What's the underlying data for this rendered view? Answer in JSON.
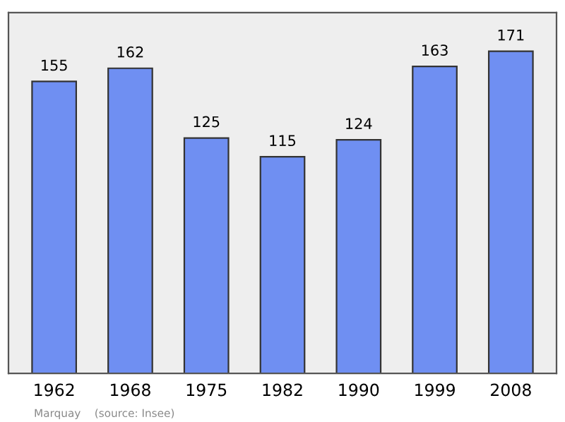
{
  "chart_data": {
    "type": "bar",
    "categories": [
      "1962",
      "1968",
      "1975",
      "1982",
      "1990",
      "1999",
      "2008"
    ],
    "values": [
      155,
      162,
      125,
      115,
      124,
      163,
      171
    ],
    "color": "#6f8ff2",
    "data_labels": true,
    "annotations": [
      "Marquay    (source: Insee)"
    ]
  }
}
